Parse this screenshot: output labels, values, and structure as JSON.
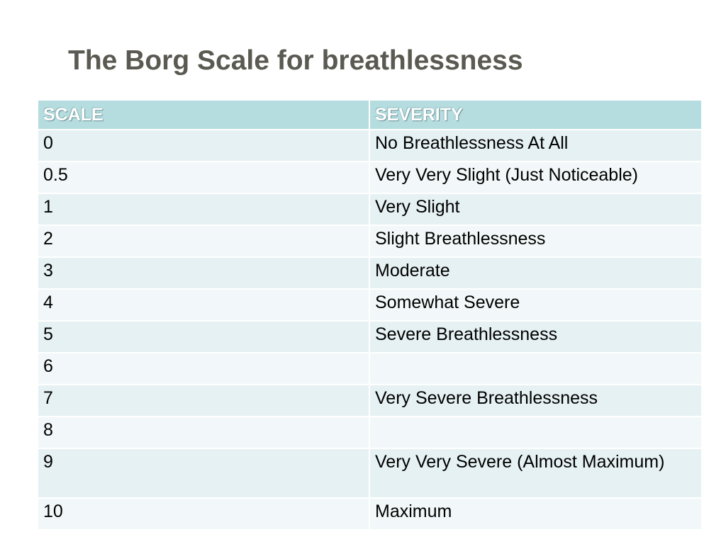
{
  "slide": {
    "title": "The Borg Scale for breathlessness"
  },
  "table": {
    "headers": {
      "scale": "SCALE",
      "severity": "SEVERITY"
    },
    "rows": [
      {
        "scale": "0",
        "severity": "No Breathlessness At All"
      },
      {
        "scale": "0.5",
        "severity": "Very Very Slight (Just Noticeable)"
      },
      {
        "scale": "1",
        "severity": "Very Slight"
      },
      {
        "scale": "2",
        "severity": "Slight Breathlessness"
      },
      {
        "scale": "3",
        "severity": "Moderate"
      },
      {
        "scale": "4",
        "severity": "Somewhat Severe"
      },
      {
        "scale": "5",
        "severity": "Severe Breathlessness"
      },
      {
        "scale": "6",
        "severity": ""
      },
      {
        "scale": "7",
        "severity": "Very Severe Breathlessness"
      },
      {
        "scale": "8",
        "severity": ""
      },
      {
        "scale": "9",
        "severity": "Very Very Severe (Almost Maximum)"
      },
      {
        "scale": "10",
        "severity": "Maximum"
      }
    ]
  },
  "colors": {
    "header_background": "#b5dde0",
    "row_background_a": "#e6f1f3",
    "row_background_b": "#f2f8f9",
    "title_text": "#5a5a52"
  }
}
